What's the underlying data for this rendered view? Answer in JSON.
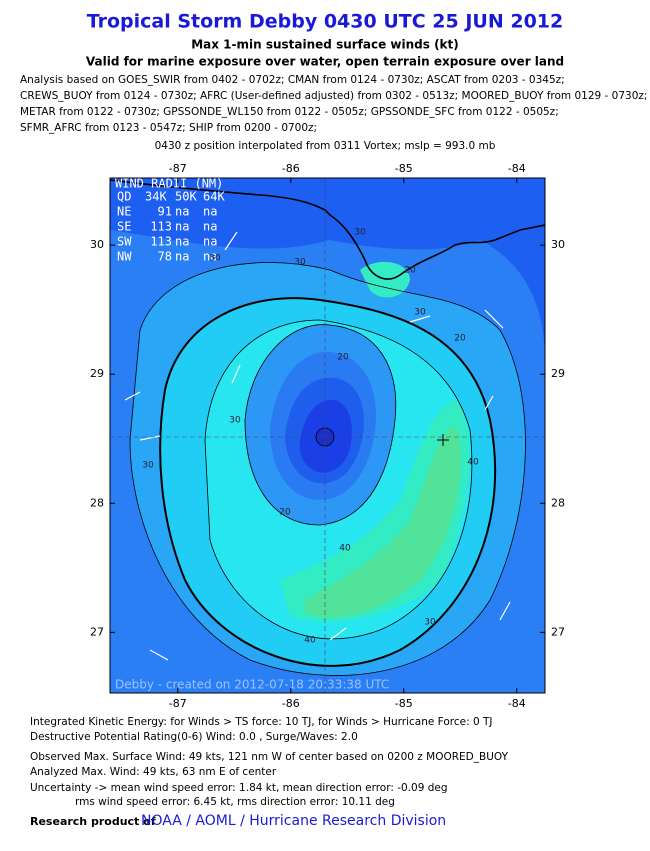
{
  "header": {
    "title": "Tropical Storm Debby 0430 UTC 25 JUN 2012",
    "subtitle1": "Max 1-min sustained surface winds (kt)",
    "subtitle2": "Valid for marine exposure over water, open terrain exposure over land",
    "analysis": [
      "Analysis based on GOES_SWIR from 0402 - 0702z; CMAN from 0124 - 0730z; ASCAT from 0203 - 0345z;",
      "CREWS_BUOY from 0124 - 0730z; AFRC (User-defined adjusted) from 0302 - 0513z; MOORED_BUOY from 0129 - 0730z;",
      "METAR from 0122 - 0730z; GPSSONDE_WL150 from 0122 - 0505z; GPSSONDE_SFC from 0122 - 0505z;",
      "SFMR_AFRC from 0123 - 0547z; SHIP from 0200 - 0700z;"
    ],
    "position": "0430 z position interpolated from 0311 Vortex; mslp = 993.0 mb"
  },
  "map": {
    "xlim": [
      -87.6,
      -83.75
    ],
    "ylim": [
      26.53,
      30.52
    ],
    "xticks": [
      -87,
      -86,
      -85,
      -84
    ],
    "yticks": [
      27,
      28,
      29,
      30
    ],
    "radii": {
      "title": "WIND RADII (NM)",
      "header": [
        "QD",
        "34K",
        "50K",
        "64K"
      ],
      "rows": [
        [
          "NE",
          91,
          "na",
          "na"
        ],
        [
          "SE",
          113,
          "na",
          "na"
        ],
        [
          "SW",
          113,
          "na",
          "na"
        ],
        [
          "NW",
          78,
          "na",
          "na"
        ]
      ]
    },
    "contour_labels": [
      30,
      30,
      30,
      20,
      20,
      30,
      30,
      20,
      40,
      40,
      40,
      30,
      30,
      20
    ],
    "watermark": "Debby - created on 2012-07-18 20:33:38 UTC"
  },
  "footer": {
    "lines": [
      "Integrated Kinetic Energy: for Winds > TS force: 10 TJ, for Winds > Hurricane Force: 0 TJ",
      "Destructive Potential Rating(0-6)  Wind: 0.0 , Surge/Waves: 2.0",
      "Observed Max. Surface Wind: 49 kts, 121 nm W of center based on 0200 z MOORED_BUOY",
      "Analyzed Max. Wind: 49 kts, 63 nm  E of center",
      "Uncertainty -> mean wind speed error: 1.84 kt, mean direction error:  -0.09 deg",
      "rms wind speed error: 6.45 kt, rms direction error: 10.11 deg"
    ],
    "credit_label": "Research product of",
    "credit": "NOAA  /  AOML  /  Hurricane Research Division"
  }
}
